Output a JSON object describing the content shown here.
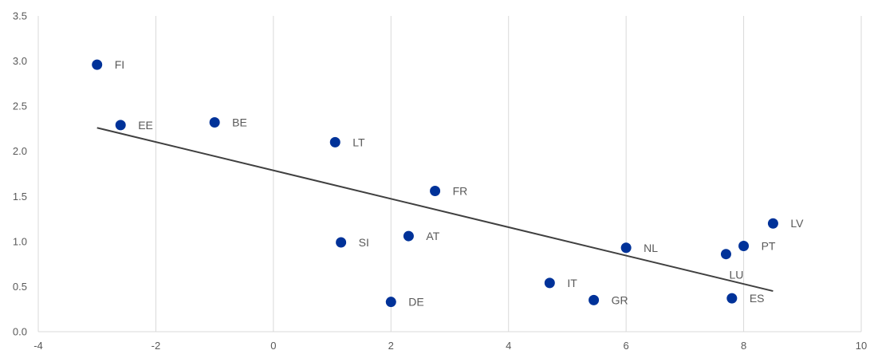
{
  "chart_data": {
    "type": "scatter",
    "title": "",
    "xlabel": "",
    "ylabel": "",
    "xlim": [
      -4,
      10
    ],
    "ylim": [
      0,
      3.5
    ],
    "x_ticks": [
      -4,
      -2,
      0,
      2,
      4,
      6,
      8,
      10
    ],
    "y_ticks": [
      0.0,
      0.5,
      1.0,
      1.5,
      2.0,
      2.5,
      3.0,
      3.5
    ],
    "x_tick_labels": [
      "-4",
      "-2",
      "0",
      "2",
      "4",
      "6",
      "8",
      "10"
    ],
    "y_tick_labels": [
      "0.0",
      "0.5",
      "1.0",
      "1.5",
      "2.0",
      "2.5",
      "3.0",
      "3.5"
    ],
    "grid": "vertical",
    "legend": "none",
    "marker_color": "#003299",
    "trendline_color": "#404040",
    "grid_color": "#d9d9d9",
    "points": [
      {
        "label": "FI",
        "x": -3.0,
        "y": 2.96
      },
      {
        "label": "EE",
        "x": -2.6,
        "y": 2.29
      },
      {
        "label": "BE",
        "x": -1.0,
        "y": 2.32
      },
      {
        "label": "LT",
        "x": 1.05,
        "y": 2.1
      },
      {
        "label": "FR",
        "x": 2.75,
        "y": 1.56
      },
      {
        "label": "SI",
        "x": 1.15,
        "y": 0.99
      },
      {
        "label": "AT",
        "x": 2.3,
        "y": 1.06
      },
      {
        "label": "DE",
        "x": 2.0,
        "y": 0.33
      },
      {
        "label": "IT",
        "x": 4.7,
        "y": 0.54
      },
      {
        "label": "GR",
        "x": 5.45,
        "y": 0.35
      },
      {
        "label": "NL",
        "x": 6.0,
        "y": 0.93
      },
      {
        "label": "LU",
        "x": 7.7,
        "y": 0.86
      },
      {
        "label": "PT",
        "x": 8.0,
        "y": 0.95
      },
      {
        "label": "ES",
        "x": 7.8,
        "y": 0.37
      },
      {
        "label": "LV",
        "x": 8.5,
        "y": 1.2
      }
    ],
    "trendline": {
      "x": [
        -3.0,
        8.5
      ],
      "y": [
        2.26,
        0.45
      ]
    }
  }
}
